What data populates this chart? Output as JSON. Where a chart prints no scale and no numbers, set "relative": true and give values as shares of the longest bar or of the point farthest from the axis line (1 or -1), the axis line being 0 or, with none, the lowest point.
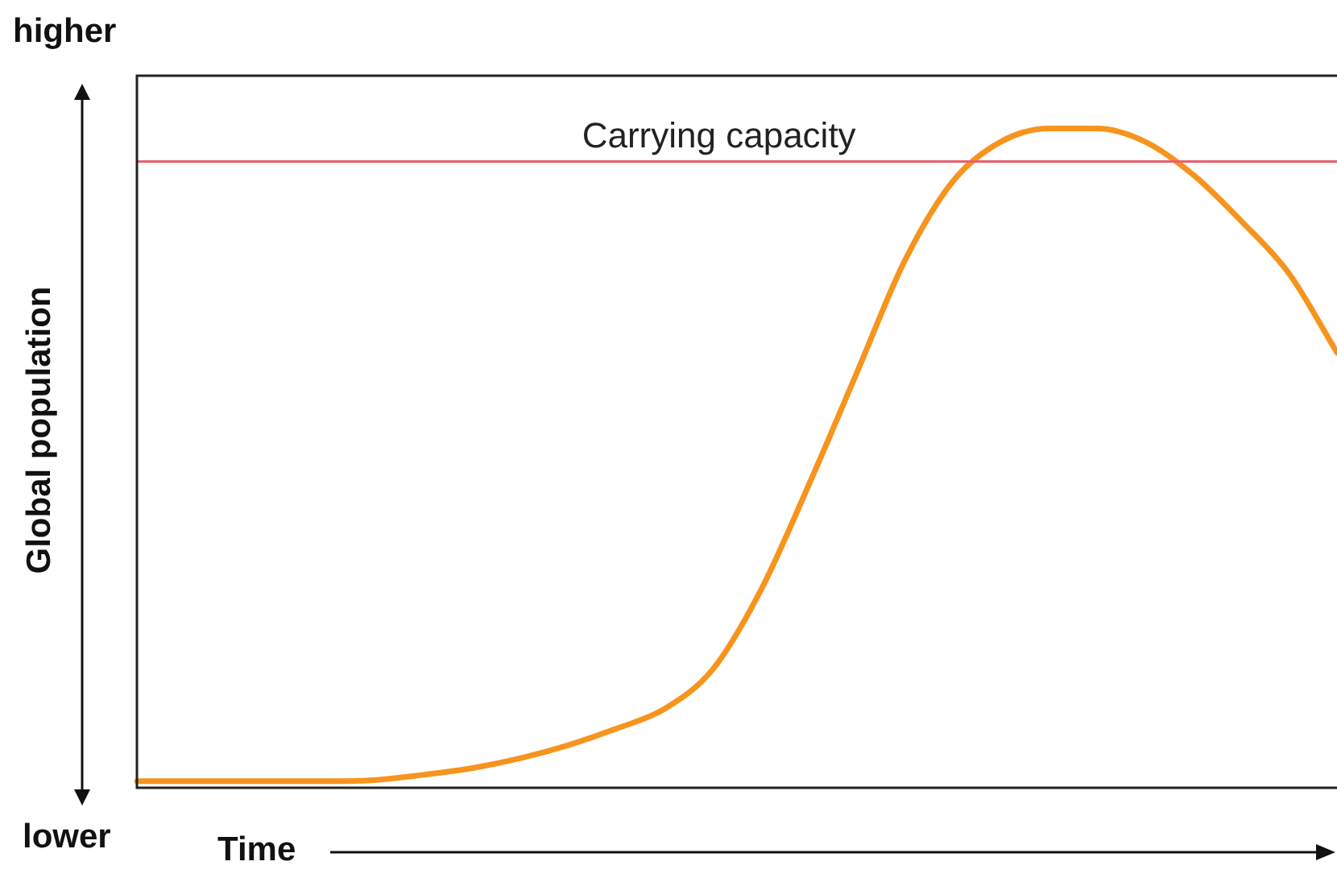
{
  "chart_data": {
    "type": "line",
    "relative": true,
    "xlabel": "Time",
    "ylabel": "Global population",
    "annotations": [
      "higher",
      "lower"
    ],
    "categories": [
      null,
      null,
      null,
      null,
      null,
      null,
      null,
      null,
      null,
      null,
      null,
      null,
      null,
      null,
      null,
      null,
      null,
      null,
      null,
      null,
      null,
      null,
      null,
      null,
      null,
      null
    ],
    "series": [
      {
        "color": "#f7941d",
        "values": [
          0.01,
          0.01,
          0.01,
          0.01,
          0.01,
          0.012,
          0.02,
          0.03,
          0.045,
          0.065,
          0.09,
          0.12,
          0.18,
          0.3,
          0.46,
          0.63,
          0.8,
          0.92,
          0.98,
          1.0,
          1.0,
          0.98,
          0.93,
          0.86,
          0.78,
          0.66
        ]
      }
    ],
    "ref_lines": [
      {
        "axis": "y",
        "value": 0.95,
        "label": "Carrying capacity",
        "color": "#e8606e"
      }
    ],
    "grid": false,
    "legend": false,
    "marker": "none",
    "line_style": "solid"
  }
}
